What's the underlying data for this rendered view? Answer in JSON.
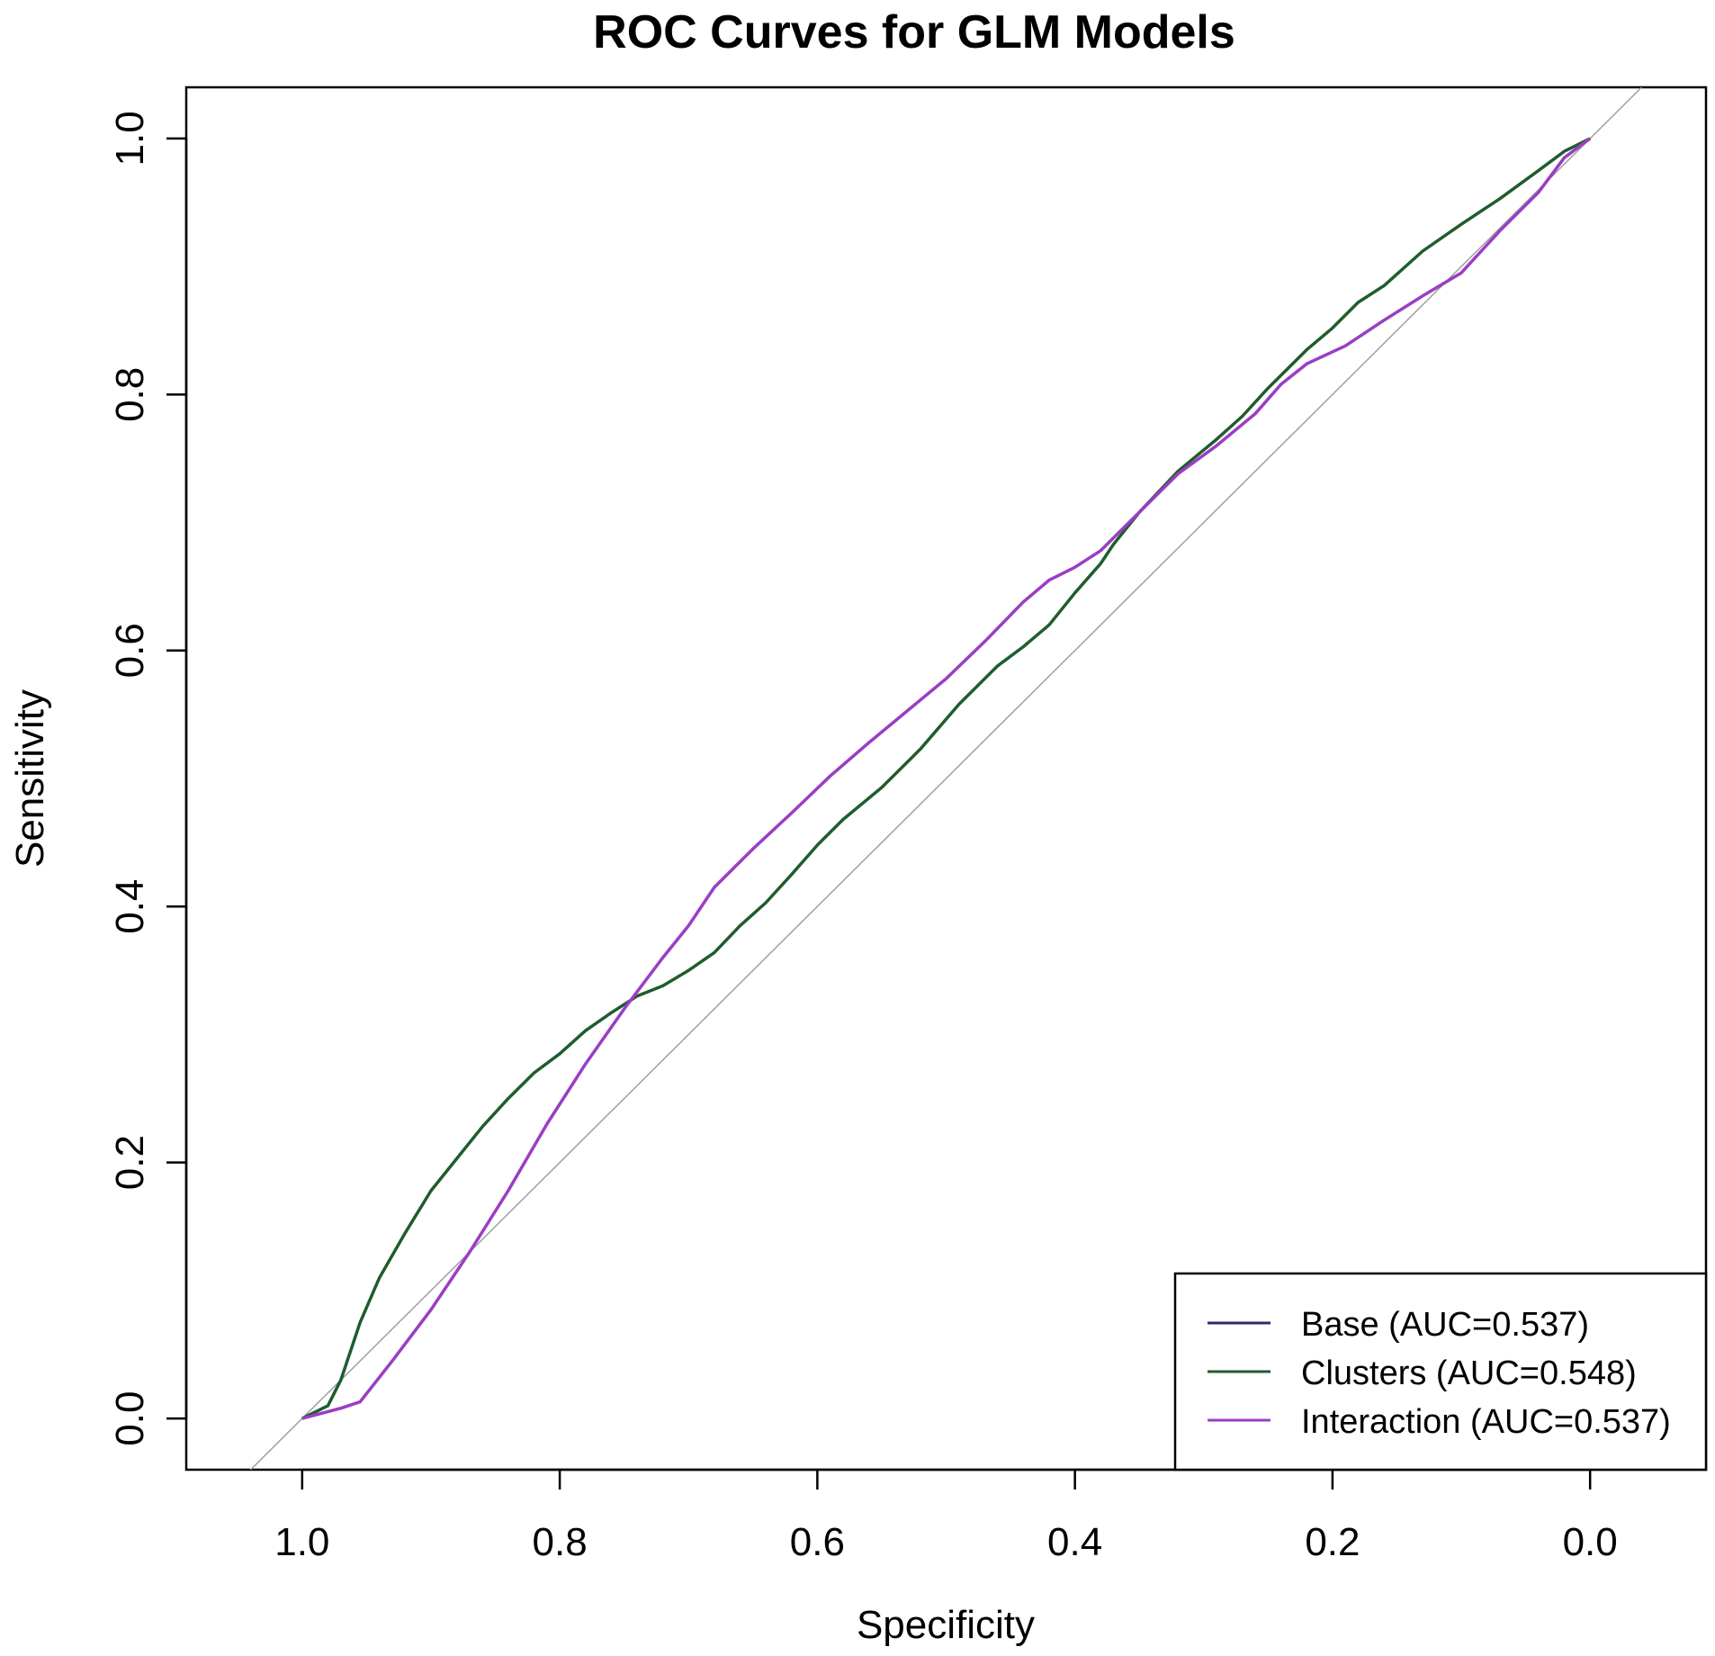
{
  "chart_data": {
    "type": "line",
    "title": "ROC Curves for GLM Models",
    "xlabel": "Specificity",
    "ylabel": "Sensitivity",
    "xlim": [
      1.09,
      -0.09
    ],
    "ylim": [
      -0.04,
      1.04
    ],
    "x_reversed": true,
    "xticks": [
      1.0,
      0.8,
      0.6,
      0.4,
      0.2,
      0.0
    ],
    "xtick_labels": [
      "1.0",
      "0.8",
      "0.6",
      "0.4",
      "0.2",
      "0.0"
    ],
    "yticks": [
      0.0,
      0.2,
      0.4,
      0.6,
      0.8,
      1.0
    ],
    "ytick_labels": [
      "0.0",
      "0.2",
      "0.4",
      "0.6",
      "0.8",
      "1.0"
    ],
    "reference_line": {
      "from": [
        1.0,
        0.0
      ],
      "to": [
        0.0,
        1.0
      ],
      "color": "#a0a0a0"
    },
    "legend_position": "bottom-right",
    "series": [
      {
        "name": "Base (AUC=0.537)",
        "color": "#2b2b6b",
        "specificity": [
          1.0,
          0.97,
          0.955,
          0.93,
          0.9,
          0.87,
          0.84,
          0.81,
          0.78,
          0.75,
          0.72,
          0.7,
          0.68,
          0.65,
          0.62,
          0.59,
          0.56,
          0.53,
          0.5,
          0.47,
          0.44,
          0.42,
          0.4,
          0.38,
          0.35,
          0.32,
          0.29,
          0.26,
          0.24,
          0.22,
          0.19,
          0.16,
          0.13,
          0.1,
          0.07,
          0.04,
          0.02,
          0.0
        ],
        "sensitivity": [
          0.0,
          0.008,
          0.013,
          0.045,
          0.085,
          0.13,
          0.178,
          0.23,
          0.277,
          0.32,
          0.36,
          0.385,
          0.415,
          0.445,
          0.473,
          0.502,
          0.528,
          0.553,
          0.578,
          0.607,
          0.638,
          0.655,
          0.665,
          0.678,
          0.708,
          0.738,
          0.76,
          0.785,
          0.808,
          0.824,
          0.838,
          0.858,
          0.877,
          0.895,
          0.928,
          0.958,
          0.985,
          1.0
        ]
      },
      {
        "name": "Clusters (AUC=0.548)",
        "color": "#1f5c2e",
        "specificity": [
          1.0,
          0.98,
          0.97,
          0.955,
          0.94,
          0.92,
          0.9,
          0.88,
          0.86,
          0.84,
          0.82,
          0.8,
          0.78,
          0.76,
          0.74,
          0.72,
          0.7,
          0.68,
          0.66,
          0.64,
          0.62,
          0.6,
          0.58,
          0.55,
          0.52,
          0.49,
          0.46,
          0.44,
          0.42,
          0.4,
          0.38,
          0.37,
          0.35,
          0.32,
          0.29,
          0.27,
          0.25,
          0.22,
          0.2,
          0.18,
          0.16,
          0.13,
          0.1,
          0.07,
          0.04,
          0.02,
          0.0
        ],
        "sensitivity": [
          0.0,
          0.01,
          0.03,
          0.075,
          0.11,
          0.145,
          0.178,
          0.203,
          0.228,
          0.25,
          0.27,
          0.285,
          0.303,
          0.317,
          0.33,
          0.338,
          0.35,
          0.364,
          0.385,
          0.403,
          0.425,
          0.448,
          0.468,
          0.493,
          0.523,
          0.558,
          0.588,
          0.603,
          0.62,
          0.645,
          0.668,
          0.683,
          0.708,
          0.74,
          0.765,
          0.783,
          0.805,
          0.835,
          0.852,
          0.872,
          0.885,
          0.912,
          0.933,
          0.953,
          0.975,
          0.99,
          1.0
        ]
      },
      {
        "name": "Interaction (AUC=0.537)",
        "color": "#9a3ec4",
        "specificity": [
          1.0,
          0.97,
          0.955,
          0.93,
          0.9,
          0.87,
          0.84,
          0.81,
          0.78,
          0.75,
          0.72,
          0.7,
          0.68,
          0.65,
          0.62,
          0.59,
          0.56,
          0.53,
          0.5,
          0.47,
          0.44,
          0.42,
          0.4,
          0.38,
          0.35,
          0.32,
          0.29,
          0.26,
          0.24,
          0.22,
          0.19,
          0.16,
          0.13,
          0.1,
          0.07,
          0.04,
          0.02,
          0.0
        ],
        "sensitivity": [
          0.0,
          0.008,
          0.013,
          0.045,
          0.085,
          0.13,
          0.178,
          0.23,
          0.277,
          0.32,
          0.36,
          0.385,
          0.415,
          0.445,
          0.473,
          0.502,
          0.528,
          0.553,
          0.578,
          0.607,
          0.638,
          0.655,
          0.665,
          0.678,
          0.708,
          0.738,
          0.76,
          0.785,
          0.808,
          0.824,
          0.838,
          0.858,
          0.877,
          0.895,
          0.928,
          0.958,
          0.985,
          1.0
        ]
      }
    ]
  }
}
